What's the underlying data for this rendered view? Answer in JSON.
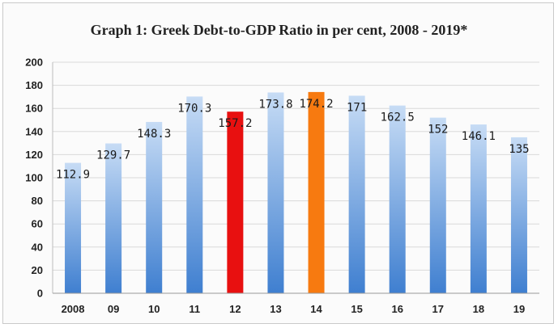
{
  "chart_data": {
    "type": "bar",
    "title": "Graph 1: Greek Debt-to-GDP Ratio in per cent, 2008 - 2019*",
    "categories": [
      "2008",
      "09",
      "10",
      "11",
      "12",
      "13",
      "14",
      "15",
      "16",
      "17",
      "18",
      "19"
    ],
    "values": [
      112.9,
      129.7,
      148.3,
      170.3,
      157.2,
      173.8,
      174.2,
      171,
      162.5,
      152,
      146.1,
      135
    ],
    "data_labels": [
      "112.9",
      "129.7",
      "148.3",
      "170.3",
      "157.2",
      "173.8",
      "174.2",
      "171",
      "162.5",
      "152",
      "146.1",
      "135"
    ],
    "ylim": [
      0,
      200
    ],
    "yticks": [
      0,
      20,
      40,
      60,
      80,
      100,
      120,
      140,
      160,
      180,
      200
    ],
    "grid": true,
    "highlight_colors": {
      "12": "#e81010",
      "14": "#f77a10"
    },
    "bar_gradient": [
      "#c7dcf5",
      "#3f7fd0"
    ],
    "gridline_color": "#d9d9d9"
  }
}
